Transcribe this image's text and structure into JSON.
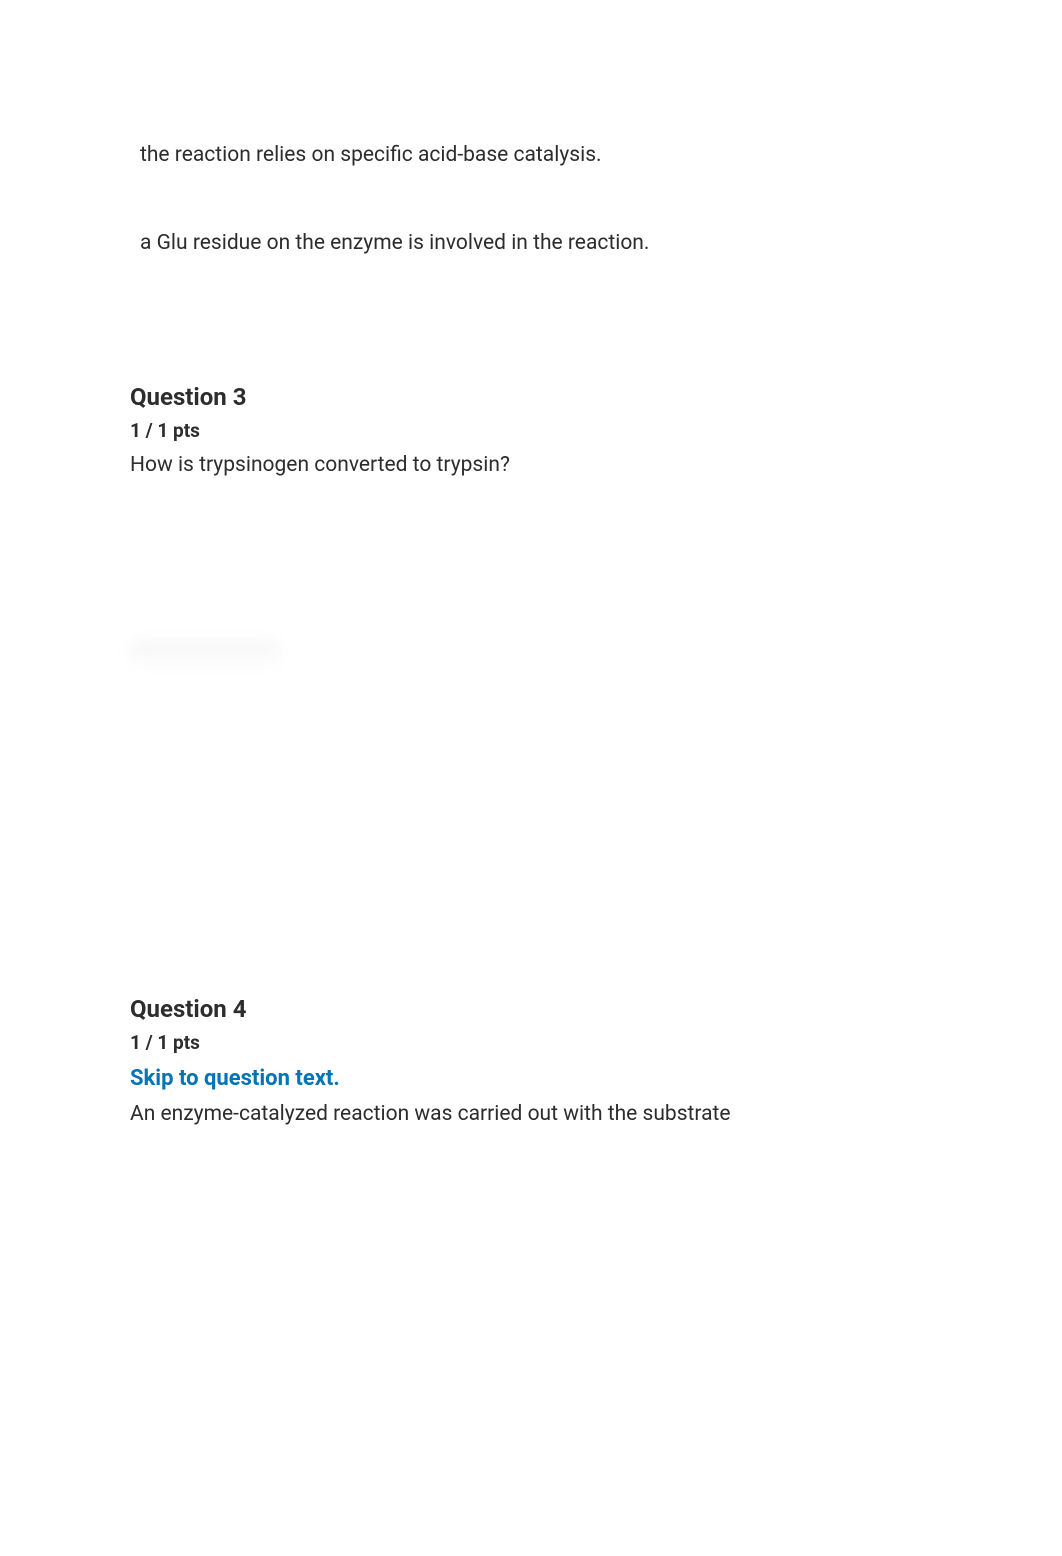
{
  "answerOptions": [
    "the reaction relies on specific acid-base catalysis.",
    "a Glu residue on the enzyme is involved in the reaction."
  ],
  "question3": {
    "title": "Question 3",
    "score": "1 / 1 pts",
    "text": "How is trypsinogen converted to trypsin?"
  },
  "question4": {
    "title": "Question 4",
    "score": "1 / 1 pts",
    "skipLink": "Skip to question text.",
    "text": "An enzyme-catalyzed reaction was carried out with the substrate"
  },
  "colors": {
    "text": "#2d2d2d",
    "link": "#0374b5",
    "background": "#ffffff"
  }
}
